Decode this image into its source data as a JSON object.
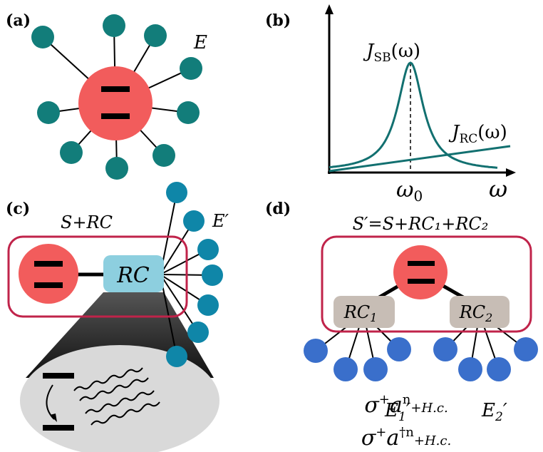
{
  "panel_a": {
    "label": "(a)",
    "env": "E"
  },
  "panel_b": {
    "label": "(b)",
    "curve_sb": {
      "symbol": "J",
      "sub": "SB",
      "arg": "(ω)"
    },
    "curve_rc": {
      "symbol": "J",
      "sub": "RC",
      "arg": "(ω)"
    },
    "peak": {
      "symbol": "ω",
      "sub": "0"
    },
    "axis": "ω"
  },
  "panel_c": {
    "label": "(c)",
    "group": "S+RC",
    "env": "E′",
    "box": "RC",
    "terms": [
      {
        "op": "σ",
        "sup": "+",
        "mode": "a",
        "power": "n",
        "rest": "+H.c."
      },
      {
        "op": "σ",
        "sup": "+",
        "mode": "a",
        "power": "†n",
        "rest": "+H.c."
      }
    ]
  },
  "panel_d": {
    "label": "(d)",
    "group": "S′=S+RC₁+RC₂",
    "boxes": [
      {
        "name": "RC",
        "sub": "1"
      },
      {
        "name": "RC",
        "sub": "2"
      }
    ],
    "envs": [
      {
        "name": "E",
        "sub": "1",
        "prime": "′"
      },
      {
        "name": "E",
        "sub": "2",
        "prime": "′"
      }
    ]
  }
}
